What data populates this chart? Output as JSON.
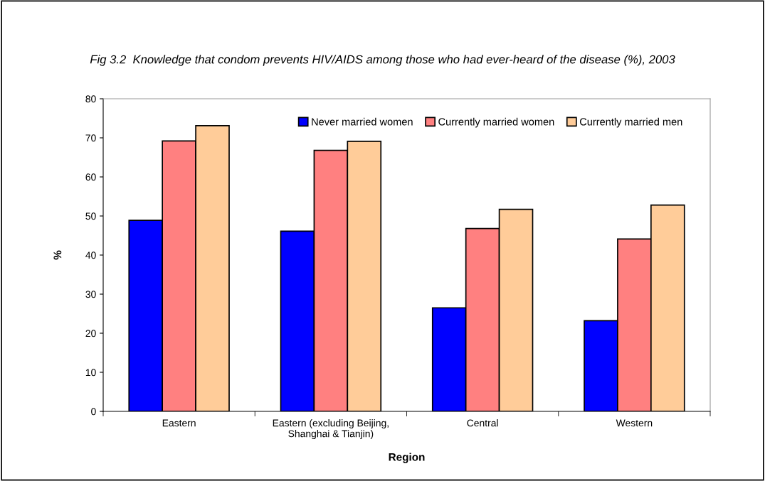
{
  "chart_data": {
    "type": "bar",
    "title": "Fig 3.2  Knowledge that condom prevents HIV/AIDS among those who had ever-heard of the disease (%), 2003",
    "xlabel": "Region",
    "ylabel": "%",
    "categories": [
      "Eastern",
      "Eastern (excluding Beijing,\nShanghai & Tianjin)",
      "Central",
      "Western"
    ],
    "series": [
      {
        "name": "Never married women",
        "color": "#0000ff",
        "values": [
          48.9,
          46.1,
          26.5,
          23.2
        ]
      },
      {
        "name": "Currently married women",
        "color": "#ff8080",
        "values": [
          69.2,
          66.8,
          46.8,
          44.1
        ]
      },
      {
        "name": "Currently married men",
        "color": "#ffcc99",
        "values": [
          73.1,
          69.1,
          51.7,
          52.8
        ]
      }
    ],
    "ylim": [
      0,
      80
    ],
    "yticks": [
      0,
      10,
      20,
      30,
      40,
      50,
      60,
      70,
      80
    ],
    "grid": false,
    "legend": "top right"
  }
}
